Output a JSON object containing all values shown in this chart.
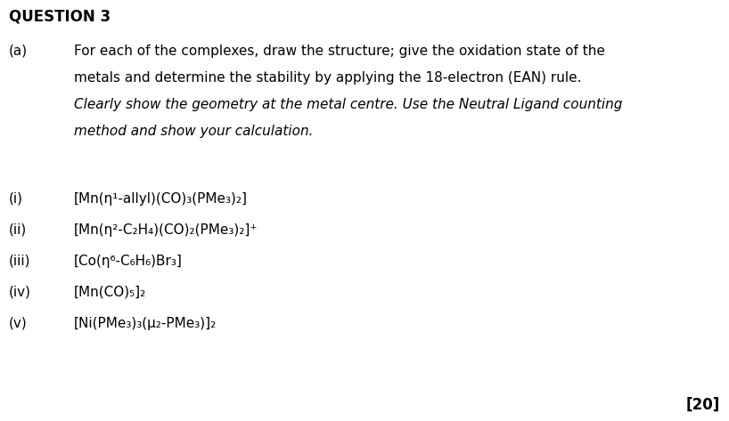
{
  "bg_color": "#ffffff",
  "title": "QUESTION 3",
  "label_a": "(a)",
  "para_lines": [
    {
      "text": "For each of the complexes, draw the structure; give the oxidation state of the",
      "italic": false
    },
    {
      "text": "metals and determine the stability by applying the 18-electron (EAN) rule.",
      "italic": false
    },
    {
      "text": "Clearly show the geometry at the metal centre. Use the Neutral Ligand counting",
      "italic": true
    },
    {
      "text": "method and show your calculation.",
      "italic": true
    }
  ],
  "items": [
    {
      "label": "(i)",
      "formula": "[Mn(η¹-allyl)(CO)₃(PMe₃)₂]"
    },
    {
      "label": "(ii)",
      "formula": "[Mn(η²-C₂H₄)(CO)₂(PMe₃)₂]⁺"
    },
    {
      "label": "(iii)",
      "formula": "[Co(η⁶-C₆H₆)Br₃]"
    },
    {
      "label": "(iv)",
      "formula": "[Mn(CO)₅]₂"
    },
    {
      "label": "(v)",
      "formula": "[Ni(PMe₃)₃(μ₂-PMe₃)]₂"
    }
  ],
  "score_text": "[20]",
  "fontsize": 11,
  "title_fontsize": 12,
  "score_fontsize": 12
}
